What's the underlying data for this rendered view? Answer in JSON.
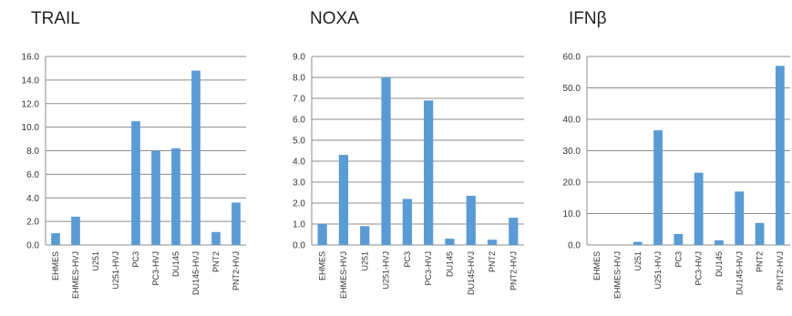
{
  "colors": {
    "bar": "#5B9BD5",
    "grid": "#8c8c8c",
    "axis": "#8c8c8c"
  },
  "chart_data": [
    {
      "type": "bar",
      "title": "TRAIL",
      "categories": [
        "EHMES",
        "EHMES-HVJ",
        "U251",
        "U251-HVJ",
        "PC3",
        "PC3-HVJ",
        "DU145",
        "DU145-HVJ",
        "PNT2",
        "PNT2-HVJ"
      ],
      "values": [
        1.0,
        2.4,
        0.0,
        0.0,
        10.5,
        8.0,
        8.2,
        14.8,
        1.1,
        3.6
      ],
      "ylim": [
        0,
        16
      ],
      "yticks": [
        "0.0",
        "2.0",
        "4.0",
        "6.0",
        "8.0",
        "10.0",
        "12.0",
        "14.0",
        "16.0"
      ],
      "grid": true
    },
    {
      "type": "bar",
      "title": "NOXA",
      "categories": [
        "EHMES",
        "EHMES-HVJ",
        "U251",
        "U251-HVJ",
        "PC3",
        "PC3-HVJ",
        "DU145",
        "DU145-HVJ",
        "PNT2",
        "PNT2-HVJ"
      ],
      "values": [
        1.0,
        4.3,
        0.9,
        8.0,
        2.2,
        6.9,
        0.3,
        2.35,
        0.25,
        1.3
      ],
      "ylim": [
        0,
        9
      ],
      "yticks": [
        "0.0",
        "1.0",
        "2.0",
        "3.0",
        "4.0",
        "5.0",
        "6.0",
        "7.0",
        "8.0",
        "9.0"
      ],
      "grid": true
    },
    {
      "type": "bar",
      "title": "IFNβ",
      "categories": [
        "EHMES",
        "EHMES-HVJ",
        "U251",
        "U251-HVJ",
        "PC3",
        "PC3-HVJ",
        "DU145",
        "DU145-HVJ",
        "PNT2",
        "PNT2-HVJ"
      ],
      "values": [
        0.0,
        0.0,
        1.0,
        36.5,
        3.5,
        23.0,
        1.5,
        17.0,
        7.0,
        57.0
      ],
      "ylim": [
        0,
        60
      ],
      "yticks": [
        "0.0",
        "10.0",
        "20.0",
        "30.0",
        "40.0",
        "50.0",
        "60.0"
      ],
      "grid": true
    }
  ]
}
